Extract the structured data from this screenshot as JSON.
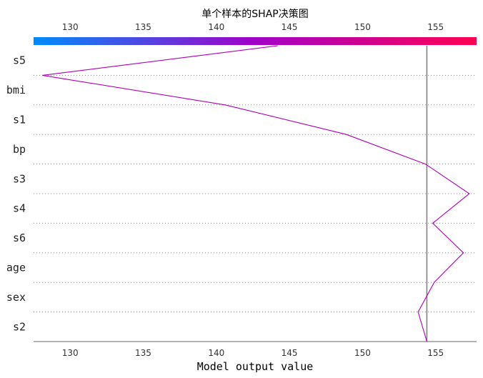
{
  "chart_data": {
    "type": "line",
    "title": "单个样本的SHAP决策图",
    "xlabel": "Model output value",
    "xlim": [
      127.5,
      157.8
    ],
    "x_ticks": [
      130,
      135,
      140,
      145,
      150,
      155
    ],
    "features": [
      "s5",
      "bmi",
      "s1",
      "bp",
      "s3",
      "s4",
      "s6",
      "age",
      "sex",
      "s2"
    ],
    "base_value": 154.4,
    "path": [
      {
        "level": "top",
        "value": 144.2
      },
      {
        "after": "s5",
        "value": 128.1
      },
      {
        "after": "bmi",
        "value": 140.6
      },
      {
        "after": "s1",
        "value": 148.9
      },
      {
        "after": "bp",
        "value": 154.3
      },
      {
        "after": "s3",
        "value": 157.3
      },
      {
        "after": "s4",
        "value": 154.8
      },
      {
        "after": "s6",
        "value": 156.9
      },
      {
        "after": "age",
        "value": 154.9
      },
      {
        "after": "sex",
        "value": 153.8
      },
      {
        "after": "s2",
        "value": 154.4
      }
    ],
    "colorbar": {
      "from": "#008bfb",
      "to": "#ff0052"
    },
    "line_color": "#b000b8",
    "base_line_color": "#808080",
    "grid": "dotted horizontal"
  }
}
